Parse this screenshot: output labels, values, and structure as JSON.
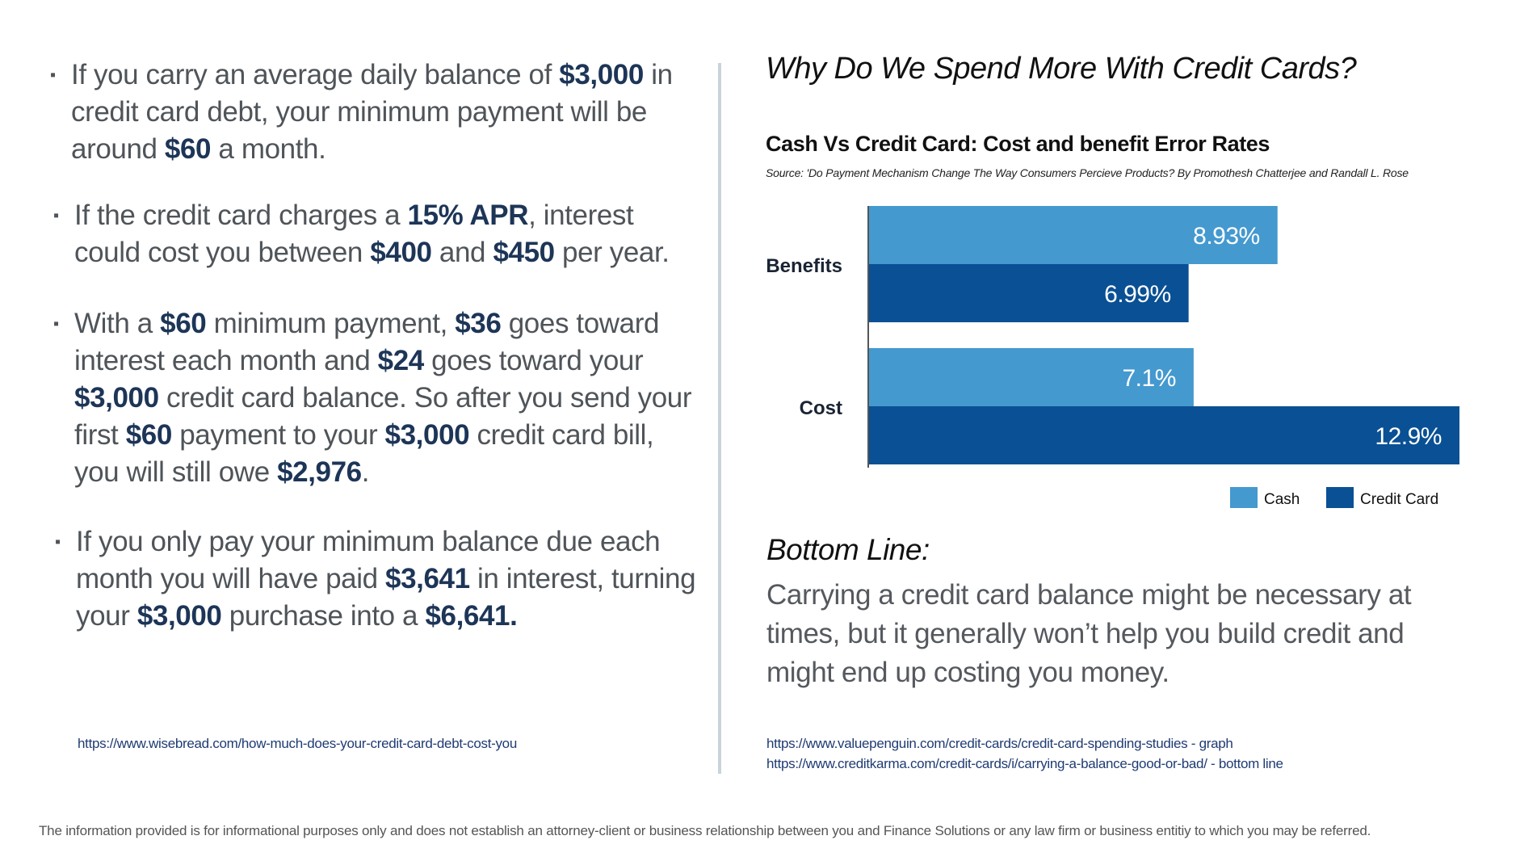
{
  "left": {
    "bullet_mark": "▪",
    "bullets": [
      [
        {
          "t": "If you carry an average daily balance of "
        },
        {
          "t": "$3,000",
          "b": true
        },
        {
          "t": " in credit card debt, your minimum payment will be around "
        },
        {
          "t": "$60",
          "b": true
        },
        {
          "t": " a month."
        }
      ],
      [
        {
          "t": "If the credit card charges a "
        },
        {
          "t": "15% APR",
          "b": true
        },
        {
          "t": ", interest could cost you between "
        },
        {
          "t": "$400",
          "b": true
        },
        {
          "t": " and "
        },
        {
          "t": "$450",
          "b": true
        },
        {
          "t": " per year."
        }
      ],
      [
        {
          "t": "With a "
        },
        {
          "t": "$60",
          "b": true
        },
        {
          "t": " minimum payment, "
        },
        {
          "t": "$36",
          "b": true
        },
        {
          "t": " goes toward interest each month and "
        },
        {
          "t": "$24",
          "b": true
        },
        {
          "t": " goes toward your "
        },
        {
          "t": "$3,000",
          "b": true
        },
        {
          "t": " credit card balance. So after you send your first "
        },
        {
          "t": "$60",
          "b": true
        },
        {
          "t": " payment to your "
        },
        {
          "t": "$3,000",
          "b": true
        },
        {
          "t": " credit card bill, you will still owe "
        },
        {
          "t": "$2,976",
          "b": true
        },
        {
          "t": "."
        }
      ],
      [
        {
          "t": "If you only pay your minimum balance due each month you will have paid "
        },
        {
          "t": "$3,641",
          "b": true
        },
        {
          "t": " in interest, turning your "
        },
        {
          "t": "$3,000",
          "b": true
        },
        {
          "t": " purchase into a "
        },
        {
          "t": "$6,641.",
          "b": true
        }
      ]
    ],
    "link": "https://www.wisebread.com/how-much-does-your-credit-card-debt-cost-you"
  },
  "right": {
    "title": "Why Do We Spend More With Credit Cards?",
    "bottom_heading": "Bottom Line:",
    "bottom_text": "Carrying a credit card balance might be necessary at times, but it generally won’t help you build credit and might end up costing you money.",
    "link1": "https://www.valuepenguin.com/credit-cards/credit-card-spending-studies - graph",
    "link2": "https://www.creditkarma.com/credit-cards/i/carrying-a-balance-good-or-bad/ - bottom line"
  },
  "chart_data": {
    "type": "bar",
    "orientation": "horizontal",
    "title": "Cash Vs Credit Card: Cost and benefit Error Rates",
    "subtitle": "Source: 'Do Payment Mechanism Change The Way Consumers Percieve Products? By Promothesh Chatterjee and Randall L. Rose",
    "categories": [
      "Benefits",
      "Cost"
    ],
    "series": [
      {
        "name": "Cash",
        "values": [
          8.93,
          7.1
        ],
        "labels": [
          "8.93%",
          "7.1%"
        ],
        "color": "#4499cf"
      },
      {
        "name": "Credit Card",
        "values": [
          6.99,
          12.9
        ],
        "labels": [
          "6.99%",
          "12.9%"
        ],
        "color": "#0a5094"
      }
    ],
    "xlim": [
      0,
      12.9
    ],
    "grid": false,
    "legend": "bottom-right"
  },
  "disclaimer": "The information provided is for informational purposes only and does not establish an attorney-client or business relationship between you and Finance Solutions or any law firm or business entitiy to which you may be referred."
}
